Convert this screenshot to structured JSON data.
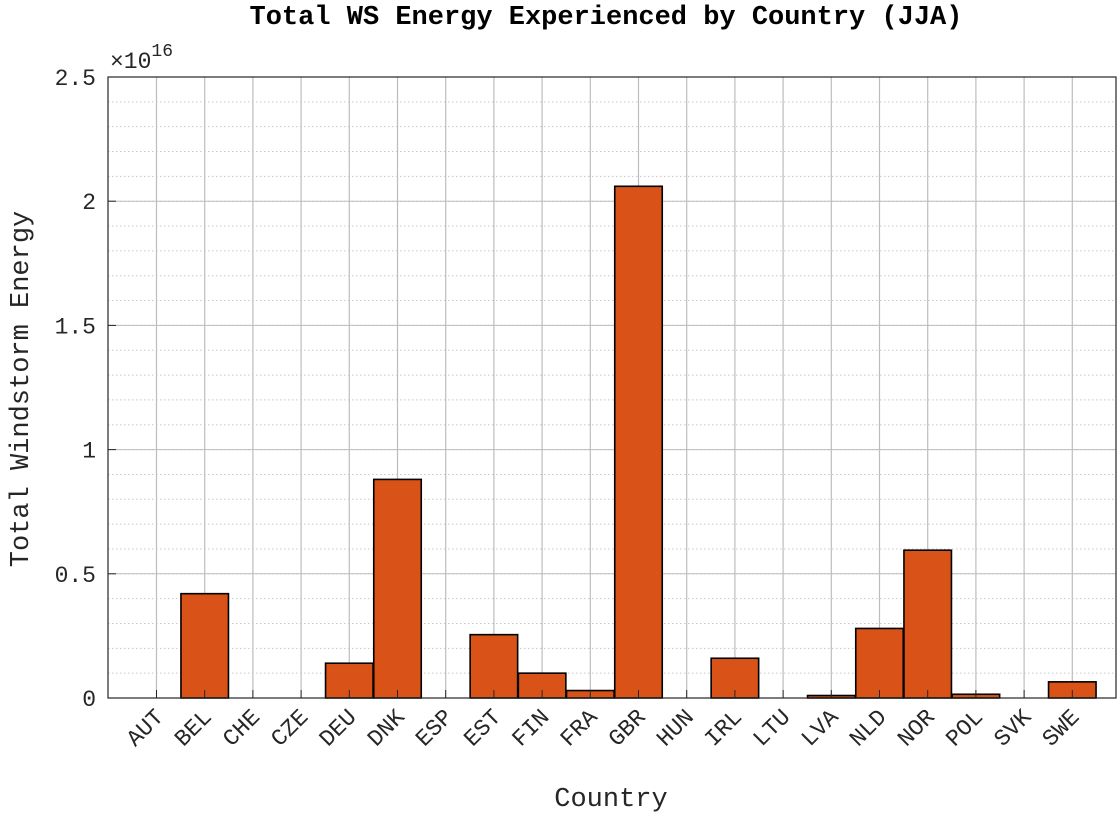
{
  "chart_data": {
    "type": "bar",
    "title": "Total WS Energy Experienced by Country (JJA)",
    "xlabel": "Country",
    "ylabel": "Total Windstorm Energy",
    "exponent_label": "×10",
    "exponent_power": "16",
    "ylim": [
      0,
      2.5
    ],
    "yticks": [
      0,
      0.5,
      1,
      1.5,
      2,
      2.5
    ],
    "ytick_labels": [
      "0",
      "0.5",
      "1",
      "1.5",
      "2",
      "2.5"
    ],
    "categories": [
      "AUT",
      "BEL",
      "CHE",
      "CZE",
      "DEU",
      "DNK",
      "ESP",
      "EST",
      "FIN",
      "FRA",
      "GBR",
      "HUN",
      "IRL",
      "LTU",
      "LVA",
      "NLD",
      "NOR",
      "POL",
      "SVK",
      "SWE"
    ],
    "values": [
      0,
      0.42,
      0,
      0,
      0.14,
      0.88,
      0,
      0.255,
      0.1,
      0.03,
      2.06,
      0,
      0.16,
      0,
      0.01,
      0.28,
      0.595,
      0.015,
      0,
      0.065
    ],
    "bar_color": "#D95319",
    "grid": "on",
    "minor_grid": "on"
  }
}
